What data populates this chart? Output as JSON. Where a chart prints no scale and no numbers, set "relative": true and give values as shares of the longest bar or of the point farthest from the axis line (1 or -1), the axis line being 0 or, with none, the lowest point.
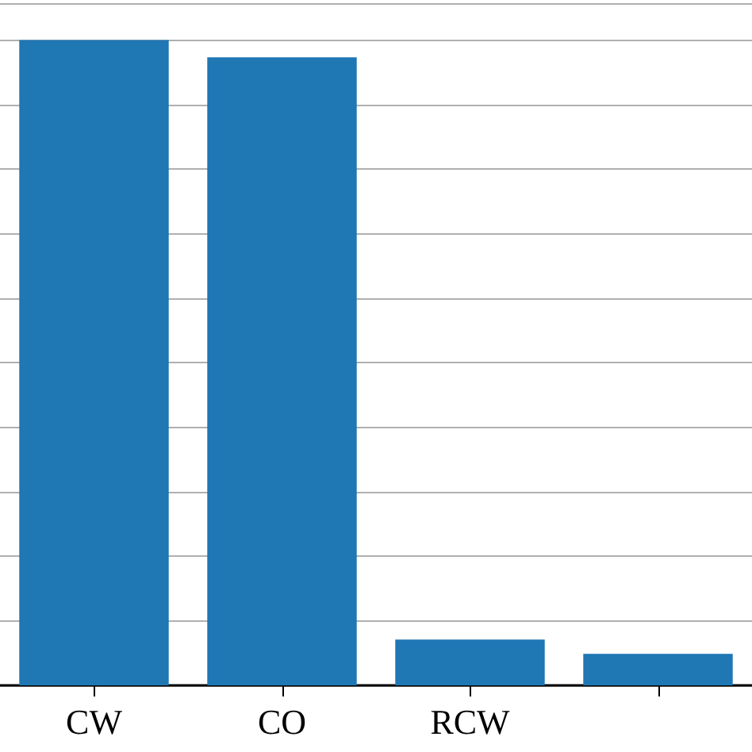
{
  "chart_data": {
    "type": "bar",
    "categories": [
      "CW",
      "CO",
      "RCW",
      null
    ],
    "values": [
      1,
      0.973,
      0.071,
      0.049
    ],
    "color": "#1f77b4",
    "relative": true,
    "grid": "y"
  }
}
